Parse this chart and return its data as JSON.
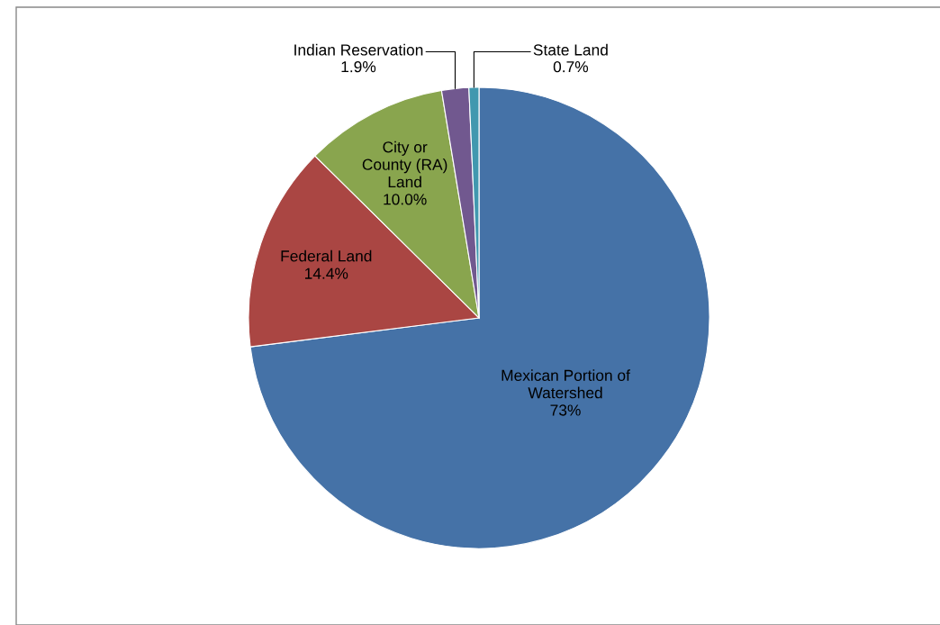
{
  "chart_data": {
    "type": "pie",
    "categories": [
      "Mexican Portion of\nWatershed",
      "Federal Land",
      "City or\nCounty (RA)\nLand",
      "Indian Reservation",
      "State Land"
    ],
    "values": [
      73,
      14.4,
      10.0,
      1.9,
      0.7
    ],
    "value_labels": [
      "73%",
      "14.4%",
      "10.0%",
      "1.9%",
      "0.7%"
    ],
    "colors": [
      "#4572a7",
      "#aa4643",
      "#89a54e",
      "#71588f",
      "#4198af"
    ],
    "legend": false
  }
}
